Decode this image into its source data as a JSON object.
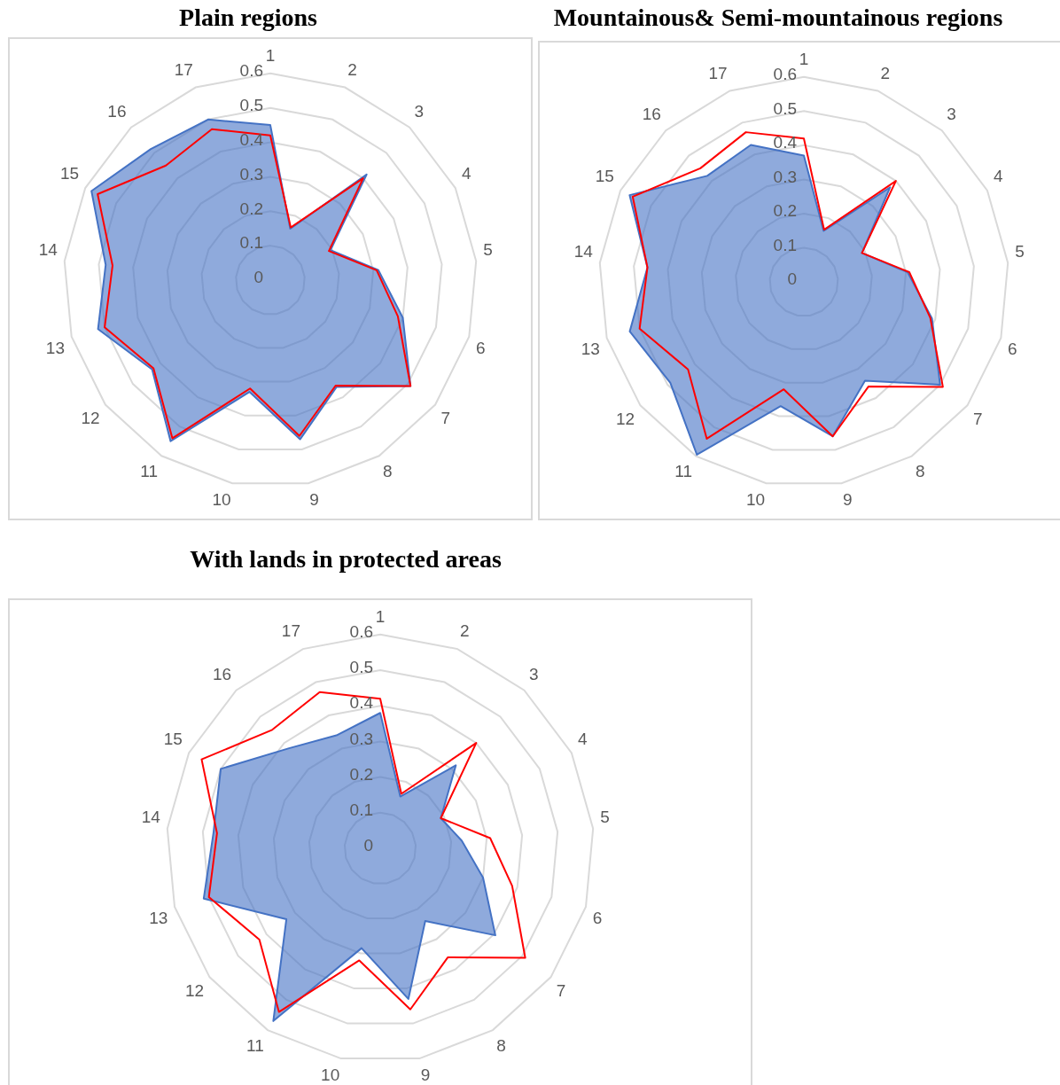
{
  "chart_data": [
    {
      "type": "radar",
      "title": "Plain regions",
      "categories": [
        "1",
        "2",
        "3",
        "4",
        "5",
        "6",
        "7",
        "8",
        "9",
        "10",
        "11",
        "12",
        "13",
        "14",
        "15",
        "16",
        "17"
      ],
      "ylim": [
        0,
        0.6
      ],
      "yticks": [
        0,
        0.1,
        0.2,
        0.3,
        0.4,
        0.5,
        0.6
      ],
      "grid": true,
      "series": [
        {
          "color": "#4472c4",
          "values": [
            0.45,
            0.16,
            0.415,
            0.195,
            0.315,
            0.4,
            0.51,
            0.365,
            0.47,
            0.33,
            0.55,
            0.43,
            0.52,
            0.48,
            0.58,
            0.515,
            0.5
          ]
        },
        {
          "color": "#ff0000",
          "values": [
            0.42,
            0.164,
            0.4,
            0.19,
            0.31,
            0.385,
            0.51,
            0.36,
            0.46,
            0.32,
            0.54,
            0.425,
            0.5,
            0.46,
            0.56,
            0.45,
            0.47
          ]
        }
      ]
    },
    {
      "type": "radar",
      "title": "Mountainous& Semi-mountainous regions",
      "categories": [
        "1",
        "2",
        "3",
        "4",
        "5",
        "6",
        "7",
        "8",
        "9",
        "10",
        "11",
        "12",
        "13",
        "14",
        "15",
        "16",
        "17"
      ],
      "ylim": [
        0,
        0.6
      ],
      "yticks": [
        0,
        0.1,
        0.2,
        0.3,
        0.4,
        0.5,
        0.6
      ],
      "grid": true,
      "series": [
        {
          "color": "#4472c4",
          "values": [
            0.37,
            0.16,
            0.375,
            0.19,
            0.305,
            0.39,
            0.5,
            0.34,
            0.46,
            0.37,
            0.595,
            0.49,
            0.53,
            0.46,
            0.57,
            0.42,
            0.43
          ]
        },
        {
          "color": "#ff0000",
          "values": [
            0.42,
            0.164,
            0.4,
            0.19,
            0.31,
            0.385,
            0.51,
            0.36,
            0.46,
            0.32,
            0.54,
            0.425,
            0.5,
            0.46,
            0.56,
            0.45,
            0.47
          ]
        }
      ]
    },
    {
      "type": "radar",
      "title": "With lands in protected areas",
      "categories": [
        "1",
        "2",
        "3",
        "4",
        "5",
        "6",
        "7",
        "8",
        "9",
        "10",
        "11",
        "12",
        "13",
        "14",
        "15",
        "16",
        "17"
      ],
      "ylim": [
        0,
        0.6
      ],
      "yticks": [
        0,
        0.1,
        0.2,
        0.3,
        0.4,
        0.5,
        0.6
      ],
      "grid": true,
      "series": [
        {
          "color": "#4472c4",
          "values": [
            0.38,
            0.156,
            0.315,
            0.19,
            0.23,
            0.3,
            0.405,
            0.24,
            0.43,
            0.285,
            0.57,
            0.33,
            0.515,
            0.47,
            0.5,
            0.38,
            0.34
          ]
        },
        {
          "color": "#ff0000",
          "values": [
            0.42,
            0.164,
            0.4,
            0.19,
            0.31,
            0.385,
            0.51,
            0.36,
            0.46,
            0.32,
            0.54,
            0.425,
            0.5,
            0.46,
            0.56,
            0.45,
            0.47
          ]
        }
      ]
    }
  ]
}
